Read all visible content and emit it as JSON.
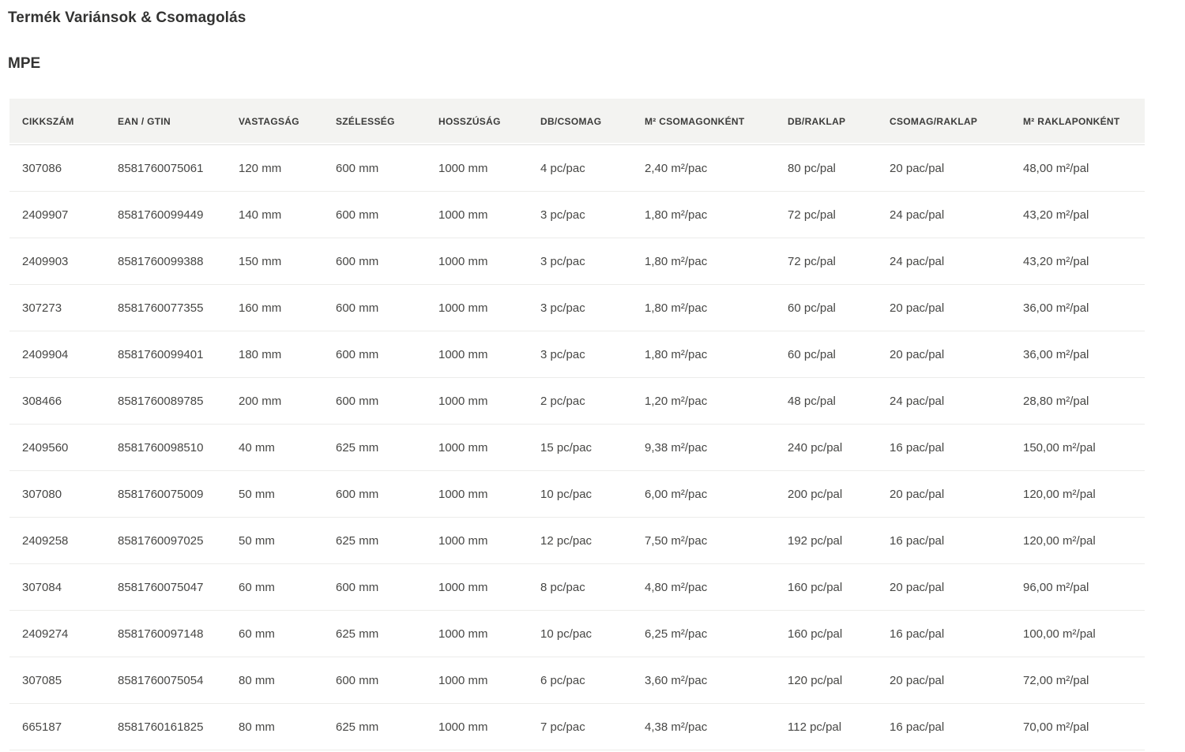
{
  "page": {
    "title": "Termék Variánsok & Csomagolás",
    "section": "MPE"
  },
  "colors": {
    "header_background": "#f3f3f1",
    "heading_text": "#333332",
    "cell_text": "#474745",
    "row_divider": "#ececea"
  },
  "table": {
    "columns": [
      "CIKKSZÁM",
      "EAN / GTIN",
      "VASTAGSÁG",
      "SZÉLESSÉG",
      "HOSSZÚSÁG",
      "DB/CSOMAG",
      "M² CSOMAGONKÉNT",
      "DB/RAKLAP",
      "CSOMAG/RAKLAP",
      "M² RAKLAPONKÉNT"
    ],
    "rows": [
      [
        "307086",
        "8581760075061",
        "120 mm",
        "600 mm",
        "1000 mm",
        "4 pc/pac",
        "2,40 m²/pac",
        "80 pc/pal",
        "20 pac/pal",
        "48,00 m²/pal"
      ],
      [
        "2409907",
        "8581760099449",
        "140 mm",
        "600 mm",
        "1000 mm",
        "3 pc/pac",
        "1,80 m²/pac",
        "72 pc/pal",
        "24 pac/pal",
        "43,20 m²/pal"
      ],
      [
        "2409903",
        "8581760099388",
        "150 mm",
        "600 mm",
        "1000 mm",
        "3 pc/pac",
        "1,80 m²/pac",
        "72 pc/pal",
        "24 pac/pal",
        "43,20 m²/pal"
      ],
      [
        "307273",
        "8581760077355",
        "160 mm",
        "600 mm",
        "1000 mm",
        "3 pc/pac",
        "1,80 m²/pac",
        "60 pc/pal",
        "20 pac/pal",
        "36,00 m²/pal"
      ],
      [
        "2409904",
        "8581760099401",
        "180 mm",
        "600 mm",
        "1000 mm",
        "3 pc/pac",
        "1,80 m²/pac",
        "60 pc/pal",
        "20 pac/pal",
        "36,00 m²/pal"
      ],
      [
        "308466",
        "8581760089785",
        "200 mm",
        "600 mm",
        "1000 mm",
        "2 pc/pac",
        "1,20 m²/pac",
        "48 pc/pal",
        "24 pac/pal",
        "28,80 m²/pal"
      ],
      [
        "2409560",
        "8581760098510",
        "40 mm",
        "625 mm",
        "1000 mm",
        "15 pc/pac",
        "9,38 m²/pac",
        "240 pc/pal",
        "16 pac/pal",
        "150,00 m²/pal"
      ],
      [
        "307080",
        "8581760075009",
        "50 mm",
        "600 mm",
        "1000 mm",
        "10 pc/pac",
        "6,00 m²/pac",
        "200 pc/pal",
        "20 pac/pal",
        "120,00 m²/pal"
      ],
      [
        "2409258",
        "8581760097025",
        "50 mm",
        "625 mm",
        "1000 mm",
        "12 pc/pac",
        "7,50 m²/pac",
        "192 pc/pal",
        "16 pac/pal",
        "120,00 m²/pal"
      ],
      [
        "307084",
        "8581760075047",
        "60 mm",
        "600 mm",
        "1000 mm",
        "8 pc/pac",
        "4,80 m²/pac",
        "160 pc/pal",
        "20 pac/pal",
        "96,00 m²/pal"
      ],
      [
        "2409274",
        "8581760097148",
        "60 mm",
        "625 mm",
        "1000 mm",
        "10 pc/pac",
        "6,25 m²/pac",
        "160 pc/pal",
        "16 pac/pal",
        "100,00 m²/pal"
      ],
      [
        "307085",
        "8581760075054",
        "80 mm",
        "600 mm",
        "1000 mm",
        "6 pc/pac",
        "3,60 m²/pac",
        "120 pc/pal",
        "20 pac/pal",
        "72,00 m²/pal"
      ],
      [
        "665187",
        "8581760161825",
        "80 mm",
        "625 mm",
        "1000 mm",
        "7 pc/pac",
        "4,38 m²/pac",
        "112 pc/pal",
        "16 pac/pal",
        "70,00 m²/pal"
      ]
    ],
    "column_keys": [
      "cikkszam",
      "ean-gtin",
      "vastagsag",
      "szelesseg",
      "hosszusag",
      "db-csomag",
      "m2-csomagonkent",
      "db-raklap",
      "csomag-raklap",
      "m2-raklaponkent"
    ]
  }
}
